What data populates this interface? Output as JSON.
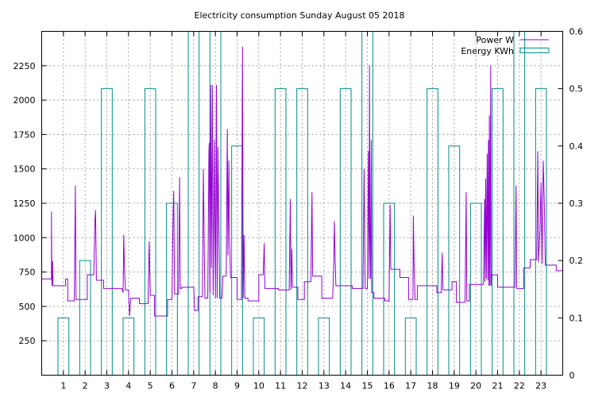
{
  "chart_data": {
    "type": "line",
    "title": "Electricity consumption Sunday August 05 2018",
    "xlabel": "",
    "ylabel": "",
    "y2label": "",
    "xlim": [
      0,
      24
    ],
    "ylim": [
      0,
      2500
    ],
    "y2lim": [
      0,
      0.6
    ],
    "x_ticks": [
      "1",
      "2",
      "3",
      "4",
      "5",
      "6",
      "7",
      "8",
      "9",
      "10",
      "11",
      "12",
      "13",
      "14",
      "15",
      "16",
      "17",
      "18",
      "19",
      "20",
      "21",
      "22",
      "23"
    ],
    "y_ticks": [
      "250",
      "500",
      "750",
      "1000",
      "1250",
      "1500",
      "1750",
      "2000",
      "2250"
    ],
    "y2_ticks": [
      "0",
      "0.1",
      "0.2",
      "0.3",
      "0.4",
      "0.5",
      "0.6"
    ],
    "grid": true,
    "legend_position": "top-right",
    "series": [
      {
        "name": "Power W",
        "axis": "y",
        "style": "line",
        "color": "#9400D3",
        "points": [
          [
            0.0,
            700
          ],
          [
            0.45,
            700
          ],
          [
            0.45,
            1190
          ],
          [
            0.47,
            650
          ],
          [
            0.5,
            830
          ],
          [
            0.52,
            650
          ],
          [
            1.1,
            650
          ],
          [
            1.1,
            700
          ],
          [
            1.2,
            700
          ],
          [
            1.2,
            540
          ],
          [
            1.5,
            540
          ],
          [
            1.55,
            1380
          ],
          [
            1.58,
            550
          ],
          [
            2.1,
            550
          ],
          [
            2.1,
            730
          ],
          [
            2.4,
            730
          ],
          [
            2.45,
            1120
          ],
          [
            2.48,
            1200
          ],
          [
            2.52,
            690
          ],
          [
            2.85,
            690
          ],
          [
            2.85,
            630
          ],
          [
            3.7,
            630
          ],
          [
            3.75,
            600
          ],
          [
            3.78,
            1020
          ],
          [
            3.82,
            740
          ],
          [
            3.86,
            620
          ],
          [
            4.0,
            620
          ],
          [
            4.05,
            430
          ],
          [
            4.1,
            560
          ],
          [
            4.5,
            560
          ],
          [
            4.5,
            520
          ],
          [
            4.9,
            520
          ],
          [
            4.95,
            970
          ],
          [
            5.0,
            580
          ],
          [
            5.2,
            580
          ],
          [
            5.2,
            430
          ],
          [
            5.8,
            430
          ],
          [
            5.8,
            550
          ],
          [
            6.0,
            550
          ],
          [
            6.05,
            1150
          ],
          [
            6.08,
            1340
          ],
          [
            6.12,
            590
          ],
          [
            6.3,
            590
          ],
          [
            6.35,
            1440
          ],
          [
            6.38,
            630
          ],
          [
            6.45,
            630
          ],
          [
            6.45,
            640
          ],
          [
            7.0,
            640
          ],
          [
            7.05,
            470
          ],
          [
            7.2,
            470
          ],
          [
            7.2,
            570
          ],
          [
            7.4,
            570
          ],
          [
            7.45,
            1500
          ],
          [
            7.48,
            1000
          ],
          [
            7.52,
            560
          ],
          [
            7.65,
            560
          ],
          [
            7.7,
            1630
          ],
          [
            7.72,
            1690
          ],
          [
            7.75,
            600
          ],
          [
            7.78,
            2110
          ],
          [
            7.82,
            780
          ],
          [
            7.86,
            2110
          ],
          [
            7.9,
            580
          ],
          [
            7.95,
            1710
          ],
          [
            8.0,
            560
          ],
          [
            8.05,
            2110
          ],
          [
            8.08,
            560
          ],
          [
            8.12,
            1660
          ],
          [
            8.2,
            560
          ],
          [
            8.3,
            560
          ],
          [
            8.35,
            720
          ],
          [
            8.5,
            720
          ],
          [
            8.55,
            1790
          ],
          [
            8.58,
            870
          ],
          [
            8.62,
            1560
          ],
          [
            8.65,
            1020
          ],
          [
            8.7,
            710
          ],
          [
            9.0,
            710
          ],
          [
            9.0,
            550
          ],
          [
            9.2,
            550
          ],
          [
            9.25,
            2390
          ],
          [
            9.28,
            560
          ],
          [
            9.32,
            1020
          ],
          [
            9.36,
            560
          ],
          [
            9.5,
            560
          ],
          [
            9.5,
            540
          ],
          [
            10.0,
            540
          ],
          [
            10.0,
            730
          ],
          [
            10.2,
            730
          ],
          [
            10.25,
            960
          ],
          [
            10.28,
            630
          ],
          [
            10.9,
            630
          ],
          [
            10.9,
            620
          ],
          [
            11.4,
            620
          ],
          [
            11.45,
            1280
          ],
          [
            11.48,
            620
          ],
          [
            11.52,
            920
          ],
          [
            11.55,
            640
          ],
          [
            11.8,
            640
          ],
          [
            11.8,
            550
          ],
          [
            12.1,
            550
          ],
          [
            12.1,
            680
          ],
          [
            12.4,
            680
          ],
          [
            12.45,
            1330
          ],
          [
            12.48,
            720
          ],
          [
            12.9,
            720
          ],
          [
            12.9,
            560
          ],
          [
            13.4,
            560
          ],
          [
            13.45,
            780
          ],
          [
            13.48,
            1120
          ],
          [
            13.52,
            830
          ],
          [
            13.55,
            650
          ],
          [
            14.3,
            650
          ],
          [
            14.3,
            630
          ],
          [
            14.8,
            630
          ],
          [
            14.85,
            1500
          ],
          [
            14.9,
            630
          ],
          [
            15.0,
            630
          ],
          [
            15.05,
            1630
          ],
          [
            15.08,
            700
          ],
          [
            15.1,
            2250
          ],
          [
            15.12,
            1060
          ],
          [
            15.15,
            700
          ],
          [
            15.18,
            1710
          ],
          [
            15.2,
            600
          ],
          [
            15.3,
            600
          ],
          [
            15.3,
            560
          ],
          [
            15.8,
            560
          ],
          [
            15.8,
            540
          ],
          [
            16.0,
            540
          ],
          [
            16.05,
            1240
          ],
          [
            16.08,
            770
          ],
          [
            16.5,
            770
          ],
          [
            16.5,
            710
          ],
          [
            16.9,
            710
          ],
          [
            16.9,
            550
          ],
          [
            17.1,
            550
          ],
          [
            17.12,
            1160
          ],
          [
            17.15,
            820
          ],
          [
            17.2,
            550
          ],
          [
            17.3,
            550
          ],
          [
            17.3,
            650
          ],
          [
            18.2,
            650
          ],
          [
            18.2,
            600
          ],
          [
            18.4,
            600
          ],
          [
            18.45,
            890
          ],
          [
            18.48,
            620
          ],
          [
            18.9,
            620
          ],
          [
            18.9,
            680
          ],
          [
            19.1,
            680
          ],
          [
            19.1,
            530
          ],
          [
            19.5,
            530
          ],
          [
            19.55,
            1330
          ],
          [
            19.58,
            540
          ],
          [
            19.7,
            540
          ],
          [
            19.7,
            660
          ],
          [
            20.35,
            660
          ],
          [
            20.4,
            1280
          ],
          [
            20.42,
            680
          ],
          [
            20.45,
            1430
          ],
          [
            20.48,
            700
          ],
          [
            20.52,
            1610
          ],
          [
            20.55,
            690
          ],
          [
            20.58,
            1710
          ],
          [
            20.6,
            650
          ],
          [
            20.62,
            1890
          ],
          [
            20.65,
            650
          ],
          [
            20.68,
            2250
          ],
          [
            20.7,
            650
          ],
          [
            20.72,
            730
          ],
          [
            21.0,
            730
          ],
          [
            21.0,
            640
          ],
          [
            21.8,
            640
          ],
          [
            21.85,
            1380
          ],
          [
            21.88,
            630
          ],
          [
            22.2,
            630
          ],
          [
            22.2,
            780
          ],
          [
            22.5,
            780
          ],
          [
            22.5,
            840
          ],
          [
            22.8,
            840
          ],
          [
            22.85,
            1630
          ],
          [
            22.88,
            820
          ],
          [
            22.95,
            1050
          ],
          [
            23.0,
            1400
          ],
          [
            23.05,
            810
          ],
          [
            23.1,
            1560
          ],
          [
            23.15,
            1260
          ],
          [
            23.2,
            800
          ],
          [
            23.7,
            800
          ],
          [
            23.7,
            760
          ],
          [
            24.0,
            760
          ]
        ]
      },
      {
        "name": "Energy KWh",
        "axis": "y2",
        "style": "bars",
        "color": "#008B8B",
        "values": [
          0.1,
          0.2,
          0.5,
          0.1,
          0.5,
          0.3,
          0.6,
          0.6,
          0.4,
          0.1,
          0.5,
          0.5,
          0.1,
          0.5,
          0.6,
          0.3,
          0.1,
          0.5,
          0.4,
          0.3,
          0.5,
          0.6,
          0.5
        ]
      }
    ]
  }
}
